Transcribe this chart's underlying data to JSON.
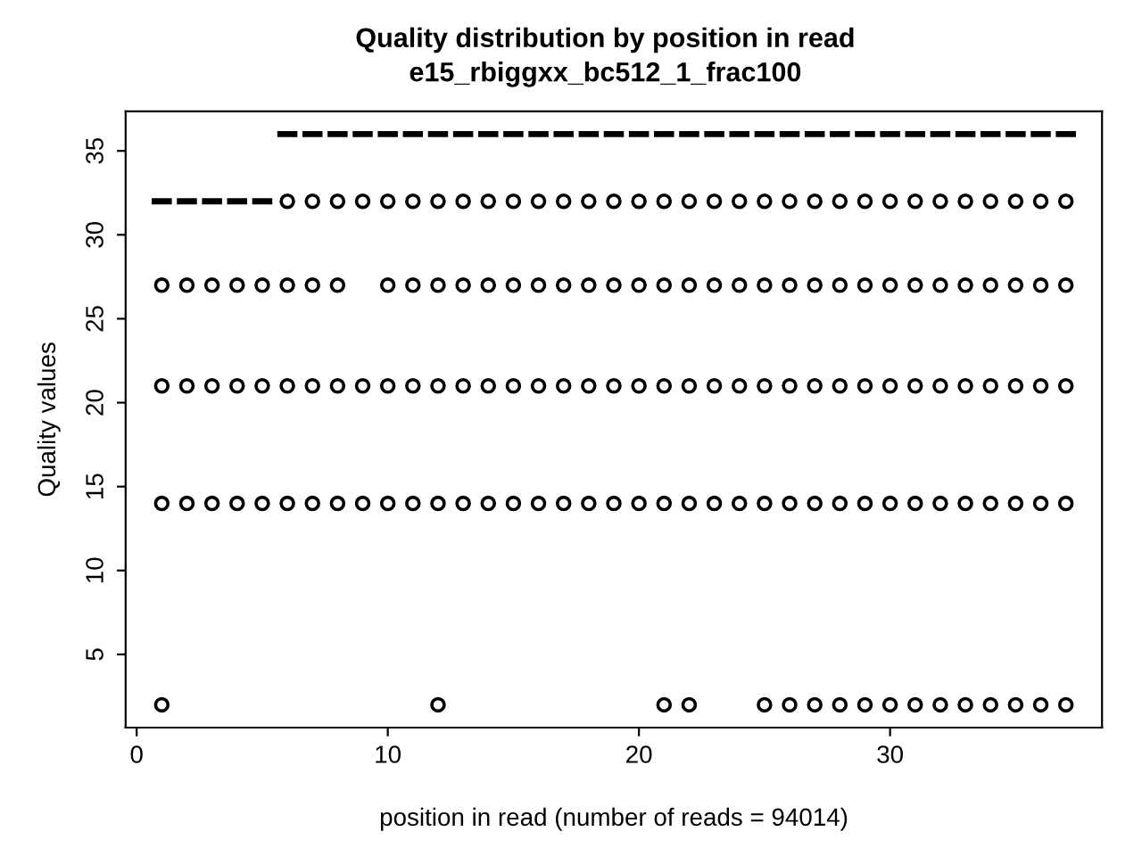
{
  "chart_data": {
    "type": "box",
    "title": "Quality distribution by position in read",
    "subtitle": "e15_rbiggxx_bc512_1_frac100",
    "xlabel": "position in read (number of reads = 94014)",
    "ylabel": "Quality values",
    "x": [
      1,
      2,
      3,
      4,
      5,
      6,
      7,
      8,
      9,
      10,
      11,
      12,
      13,
      14,
      15,
      16,
      17,
      18,
      19,
      20,
      21,
      22,
      23,
      24,
      25,
      26,
      27,
      28,
      29,
      30,
      31,
      32,
      33,
      34,
      35,
      36,
      37
    ],
    "boxes": [
      {
        "low": 32,
        "q1": 32,
        "median": 32,
        "q3": 32,
        "high": 32,
        "outliers": [
          27,
          21,
          14,
          2
        ]
      },
      {
        "low": 32,
        "q1": 32,
        "median": 32,
        "q3": 32,
        "high": 32,
        "outliers": [
          27,
          21,
          14
        ]
      },
      {
        "low": 32,
        "q1": 32,
        "median": 32,
        "q3": 32,
        "high": 32,
        "outliers": [
          27,
          21,
          14
        ]
      },
      {
        "low": 32,
        "q1": 32,
        "median": 32,
        "q3": 32,
        "high": 32,
        "outliers": [
          27,
          21,
          14
        ]
      },
      {
        "low": 32,
        "q1": 32,
        "median": 32,
        "q3": 32,
        "high": 32,
        "outliers": [
          27,
          21,
          14
        ]
      },
      {
        "low": 36,
        "q1": 36,
        "median": 36,
        "q3": 36,
        "high": 36,
        "outliers": [
          32,
          27,
          21,
          14
        ]
      },
      {
        "low": 36,
        "q1": 36,
        "median": 36,
        "q3": 36,
        "high": 36,
        "outliers": [
          32,
          27,
          21,
          14
        ]
      },
      {
        "low": 36,
        "q1": 36,
        "median": 36,
        "q3": 36,
        "high": 36,
        "outliers": [
          32,
          27,
          21,
          14
        ]
      },
      {
        "low": 36,
        "q1": 36,
        "median": 36,
        "q3": 36,
        "high": 36,
        "outliers": [
          32,
          21,
          14
        ]
      },
      {
        "low": 36,
        "q1": 36,
        "median": 36,
        "q3": 36,
        "high": 36,
        "outliers": [
          32,
          27,
          21,
          14
        ]
      },
      {
        "low": 36,
        "q1": 36,
        "median": 36,
        "q3": 36,
        "high": 36,
        "outliers": [
          32,
          27,
          21,
          14
        ]
      },
      {
        "low": 36,
        "q1": 36,
        "median": 36,
        "q3": 36,
        "high": 36,
        "outliers": [
          32,
          27,
          21,
          14,
          2
        ]
      },
      {
        "low": 36,
        "q1": 36,
        "median": 36,
        "q3": 36,
        "high": 36,
        "outliers": [
          32,
          27,
          21,
          14
        ]
      },
      {
        "low": 36,
        "q1": 36,
        "median": 36,
        "q3": 36,
        "high": 36,
        "outliers": [
          32,
          27,
          21,
          14
        ]
      },
      {
        "low": 36,
        "q1": 36,
        "median": 36,
        "q3": 36,
        "high": 36,
        "outliers": [
          32,
          27,
          21,
          14
        ]
      },
      {
        "low": 36,
        "q1": 36,
        "median": 36,
        "q3": 36,
        "high": 36,
        "outliers": [
          32,
          27,
          21,
          14
        ]
      },
      {
        "low": 36,
        "q1": 36,
        "median": 36,
        "q3": 36,
        "high": 36,
        "outliers": [
          32,
          27,
          21,
          14
        ]
      },
      {
        "low": 36,
        "q1": 36,
        "median": 36,
        "q3": 36,
        "high": 36,
        "outliers": [
          32,
          27,
          21,
          14
        ]
      },
      {
        "low": 36,
        "q1": 36,
        "median": 36,
        "q3": 36,
        "high": 36,
        "outliers": [
          32,
          27,
          21,
          14
        ]
      },
      {
        "low": 36,
        "q1": 36,
        "median": 36,
        "q3": 36,
        "high": 36,
        "outliers": [
          32,
          27,
          21,
          14
        ]
      },
      {
        "low": 36,
        "q1": 36,
        "median": 36,
        "q3": 36,
        "high": 36,
        "outliers": [
          32,
          27,
          21,
          14,
          2
        ]
      },
      {
        "low": 36,
        "q1": 36,
        "median": 36,
        "q3": 36,
        "high": 36,
        "outliers": [
          32,
          27,
          21,
          14,
          2
        ]
      },
      {
        "low": 36,
        "q1": 36,
        "median": 36,
        "q3": 36,
        "high": 36,
        "outliers": [
          32,
          27,
          21,
          14
        ]
      },
      {
        "low": 36,
        "q1": 36,
        "median": 36,
        "q3": 36,
        "high": 36,
        "outliers": [
          32,
          27,
          21,
          14
        ]
      },
      {
        "low": 36,
        "q1": 36,
        "median": 36,
        "q3": 36,
        "high": 36,
        "outliers": [
          32,
          27,
          21,
          14,
          2
        ]
      },
      {
        "low": 36,
        "q1": 36,
        "median": 36,
        "q3": 36,
        "high": 36,
        "outliers": [
          32,
          27,
          21,
          14,
          2
        ]
      },
      {
        "low": 36,
        "q1": 36,
        "median": 36,
        "q3": 36,
        "high": 36,
        "outliers": [
          32,
          27,
          21,
          14,
          2
        ]
      },
      {
        "low": 36,
        "q1": 36,
        "median": 36,
        "q3": 36,
        "high": 36,
        "outliers": [
          32,
          27,
          21,
          14,
          2
        ]
      },
      {
        "low": 36,
        "q1": 36,
        "median": 36,
        "q3": 36,
        "high": 36,
        "outliers": [
          32,
          27,
          21,
          14,
          2
        ]
      },
      {
        "low": 36,
        "q1": 36,
        "median": 36,
        "q3": 36,
        "high": 36,
        "outliers": [
          32,
          27,
          21,
          14,
          2
        ]
      },
      {
        "low": 36,
        "q1": 36,
        "median": 36,
        "q3": 36,
        "high": 36,
        "outliers": [
          32,
          27,
          21,
          14,
          2
        ]
      },
      {
        "low": 36,
        "q1": 36,
        "median": 36,
        "q3": 36,
        "high": 36,
        "outliers": [
          32,
          27,
          21,
          14,
          2
        ]
      },
      {
        "low": 36,
        "q1": 36,
        "median": 36,
        "q3": 36,
        "high": 36,
        "outliers": [
          32,
          27,
          21,
          14,
          2
        ]
      },
      {
        "low": 36,
        "q1": 36,
        "median": 36,
        "q3": 36,
        "high": 36,
        "outliers": [
          32,
          27,
          21,
          14,
          2
        ]
      },
      {
        "low": 36,
        "q1": 36,
        "median": 36,
        "q3": 36,
        "high": 36,
        "outliers": [
          32,
          27,
          21,
          14,
          2
        ]
      },
      {
        "low": 36,
        "q1": 36,
        "median": 36,
        "q3": 36,
        "high": 36,
        "outliers": [
          32,
          27,
          21,
          14,
          2
        ]
      },
      {
        "low": 36,
        "q1": 36,
        "median": 36,
        "q3": 36,
        "high": 36,
        "outliers": [
          32,
          27,
          21,
          14,
          2
        ]
      }
    ],
    "color": "#000000",
    "xlim": [
      -0.44,
      38.44
    ],
    "xticks": [
      0,
      10,
      20,
      30
    ],
    "ylim": [
      0.64,
      37.36
    ],
    "yticks": [
      5,
      10,
      15,
      20,
      25,
      30,
      35
    ],
    "grid": false,
    "legend": false
  }
}
